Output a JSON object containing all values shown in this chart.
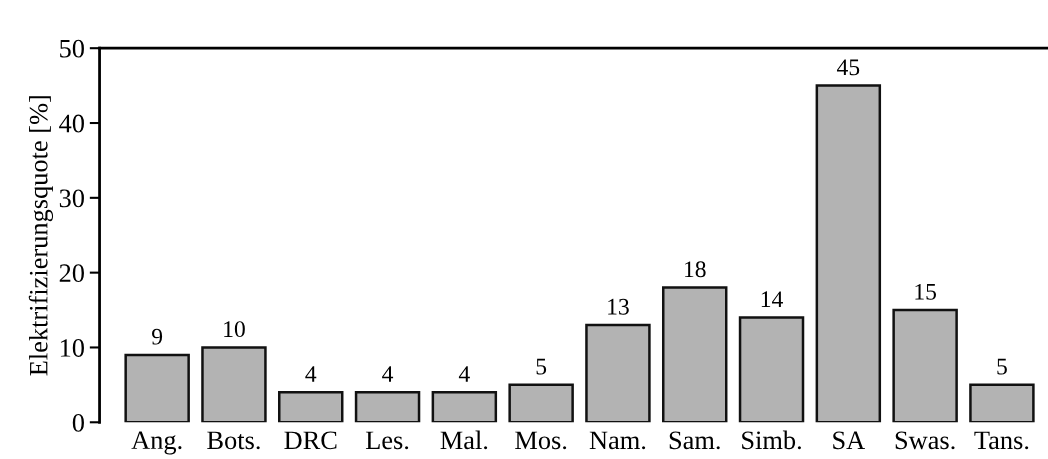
{
  "chart_data": {
    "type": "bar",
    "ylabel": "Elektrifizierungsquote [%]",
    "categories": [
      "Ang.",
      "Bots.",
      "DRC",
      "Les.",
      "Mal.",
      "Mos.",
      "Nam.",
      "Sam.",
      "Simb.",
      "SA",
      "Swas.",
      "Tans."
    ],
    "values": [
      9,
      10,
      4,
      4,
      4,
      5,
      13,
      18,
      14,
      45,
      15,
      5
    ],
    "color": "#b3b3b3",
    "ylim": [
      0,
      50
    ],
    "yticks": [
      0,
      10,
      20,
      30,
      40,
      50
    ],
    "data_labels": true,
    "grid": false,
    "legend": false
  }
}
